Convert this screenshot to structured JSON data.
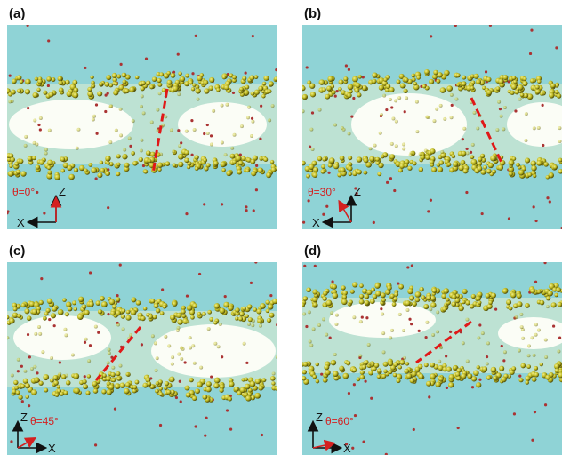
{
  "panels": [
    {
      "label": "(a)",
      "angle_label": "θ=0°",
      "axis_vertical": "Z",
      "axis_horizontal": "X"
    },
    {
      "label": "(b)",
      "angle_label": "θ=30°",
      "axis_vertical": "Z",
      "axis_horizontal": "X"
    },
    {
      "label": "(c)",
      "angle_label": "θ=45°",
      "axis_vertical": "Z",
      "axis_horizontal": "X"
    },
    {
      "label": "(d)",
      "angle_label": "θ=60°",
      "axis_vertical": "Z",
      "axis_horizontal": "X"
    }
  ]
}
